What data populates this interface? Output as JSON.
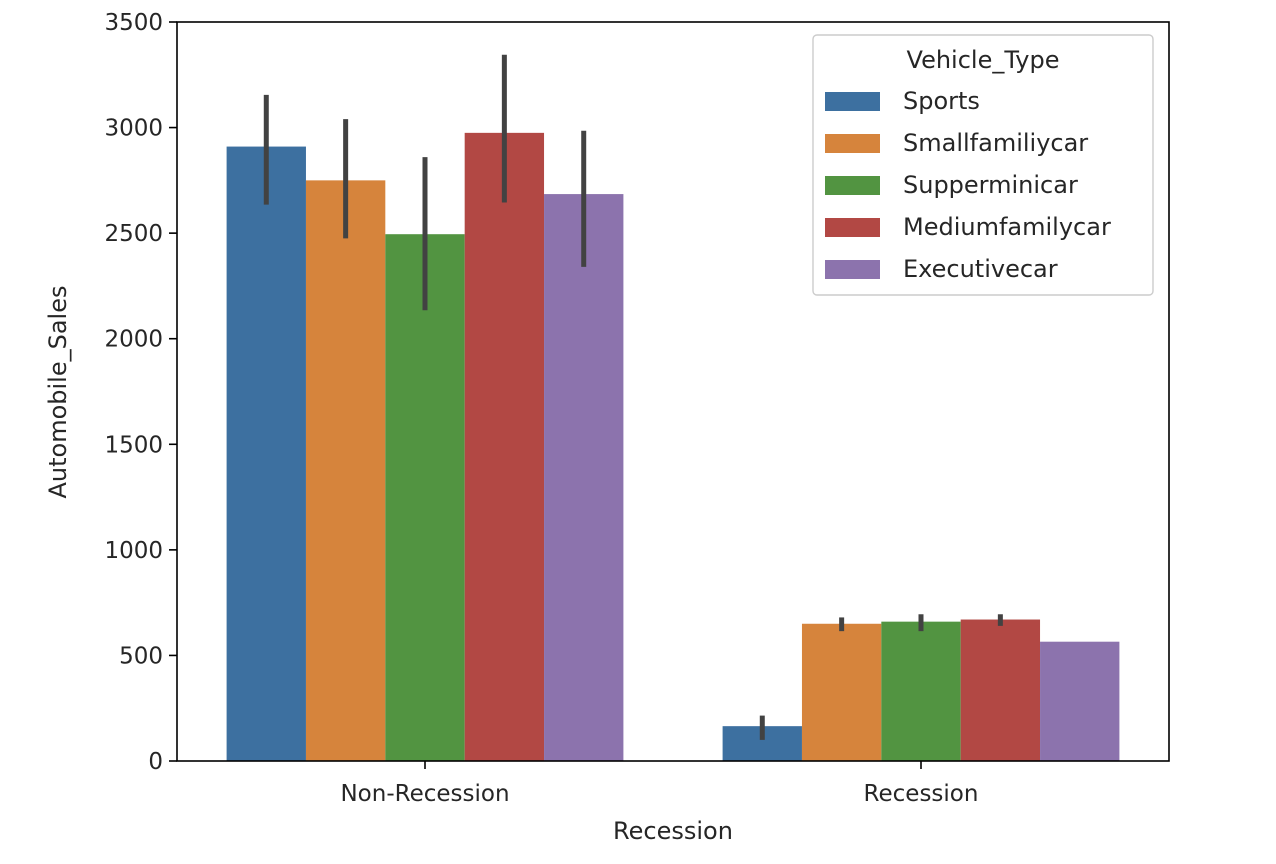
{
  "chart_data": {
    "type": "bar",
    "xlabel": "Recession",
    "ylabel": "Automobile_Sales",
    "categories": [
      "Non-Recession",
      "Recession"
    ],
    "ylim": [
      0,
      3500
    ],
    "yticks": [
      0,
      500,
      1000,
      1500,
      2000,
      2500,
      3000,
      3500
    ],
    "grid": false,
    "legend": {
      "title": "Vehicle_Type",
      "placement": "upper-right"
    },
    "series": [
      {
        "name": "Sports",
        "color": "#3d70a0",
        "values": [
          2910,
          165
        ],
        "error_low": [
          2635,
          100
        ],
        "error_high": [
          3155,
          215
        ]
      },
      {
        "name": "Smallfamiliycar",
        "color": "#d6843c",
        "values": [
          2750,
          650
        ],
        "error_low": [
          2475,
          615
        ],
        "error_high": [
          3040,
          680
        ]
      },
      {
        "name": "Supperminicar",
        "color": "#529441",
        "values": [
          2495,
          660
        ],
        "error_low": [
          2135,
          615
        ],
        "error_high": [
          2860,
          695
        ]
      },
      {
        "name": "Mediumfamilycar",
        "color": "#b24844",
        "values": [
          2975,
          670
        ],
        "error_low": [
          2645,
          640
        ],
        "error_high": [
          3345,
          695
        ]
      },
      {
        "name": "Executivecar",
        "color": "#8c73ad",
        "values": [
          2685,
          565
        ],
        "error_low": [
          2340,
          565
        ],
        "error_high": [
          2985,
          565
        ]
      }
    ]
  }
}
